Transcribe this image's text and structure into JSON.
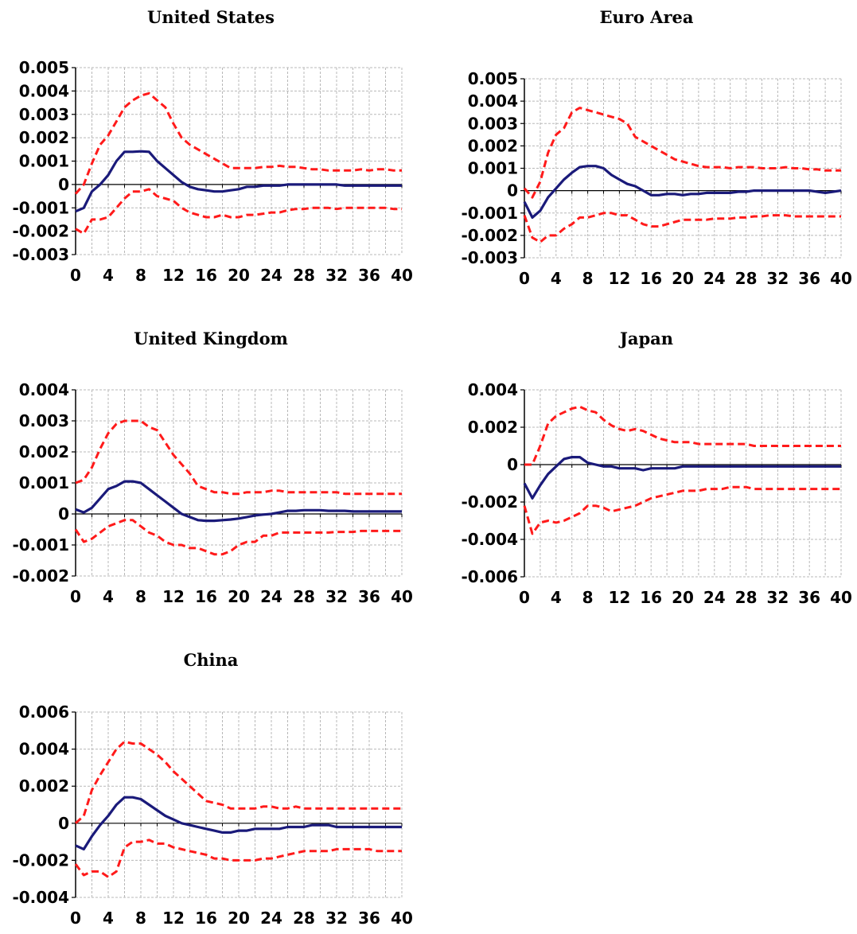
{
  "chart_data": [
    {
      "type": "line",
      "title": "United States",
      "x": [
        0,
        1,
        2,
        3,
        4,
        5,
        6,
        7,
        8,
        9,
        10,
        11,
        12,
        13,
        14,
        15,
        16,
        17,
        18,
        19,
        20,
        21,
        22,
        23,
        24,
        25,
        26,
        27,
        28,
        29,
        30,
        31,
        32,
        33,
        34,
        35,
        36,
        37,
        38,
        39,
        40
      ],
      "series": [
        {
          "role": "estimate",
          "values": [
            -0.00115,
            -0.001,
            -0.0003,
            0.0,
            0.0004,
            0.001,
            0.0014,
            0.0014,
            0.00142,
            0.0014,
            0.001,
            0.0007,
            0.0004,
            0.0001,
            -0.0001,
            -0.0002,
            -0.00025,
            -0.0003,
            -0.0003,
            -0.00025,
            -0.0002,
            -0.0001,
            -0.0001,
            -5e-05,
            -5e-05,
            -5e-05,
            0.0,
            0.0,
            0.0,
            0.0,
            0.0,
            0.0,
            0.0,
            -5e-05,
            -5e-05,
            -5e-05,
            -5e-05,
            -5e-05,
            -5e-05,
            -5e-05,
            -5e-05
          ]
        },
        {
          "role": "upper",
          "values": [
            -0.0004,
            0.0,
            0.0009,
            0.0017,
            0.0021,
            0.0027,
            0.0033,
            0.0036,
            0.0038,
            0.0039,
            0.0036,
            0.0033,
            0.0026,
            0.002,
            0.0017,
            0.0015,
            0.0013,
            0.0011,
            0.0009,
            0.0007,
            0.0007,
            0.0007,
            0.0007,
            0.00075,
            0.00075,
            0.0008,
            0.00075,
            0.00075,
            0.0007,
            0.00065,
            0.00065,
            0.0006,
            0.0006,
            0.0006,
            0.0006,
            0.00065,
            0.0006,
            0.00065,
            0.00065,
            0.0006,
            0.0006
          ]
        },
        {
          "role": "lower",
          "values": [
            -0.0019,
            -0.0021,
            -0.0015,
            -0.0015,
            -0.0014,
            -0.001,
            -0.0006,
            -0.0003,
            -0.0003,
            -0.0002,
            -0.0005,
            -0.0006,
            -0.0007,
            -0.001,
            -0.0012,
            -0.0013,
            -0.0014,
            -0.0014,
            -0.0013,
            -0.0014,
            -0.0014,
            -0.0013,
            -0.0013,
            -0.00125,
            -0.0012,
            -0.0012,
            -0.0011,
            -0.00105,
            -0.00105,
            -0.001,
            -0.001,
            -0.001,
            -0.00105,
            -0.001,
            -0.001,
            -0.001,
            -0.001,
            -0.001,
            -0.001,
            -0.00105,
            -0.00105
          ]
        }
      ],
      "yticks": [
        "0.005",
        "0.004",
        "0.003",
        "0.002",
        "0.001",
        "0",
        "-0.001",
        "-0.002",
        "-0.003"
      ],
      "ylim": [
        -0.003,
        0.005
      ],
      "xticks": [
        "0",
        "4",
        "8",
        "12",
        "16",
        "20",
        "24",
        "28",
        "32",
        "36",
        "40"
      ],
      "xlim": [
        0,
        40
      ],
      "grid": true
    },
    {
      "type": "line",
      "title": "Euro Area",
      "x": [
        0,
        1,
        2,
        3,
        4,
        5,
        6,
        7,
        8,
        9,
        10,
        11,
        12,
        13,
        14,
        15,
        16,
        17,
        18,
        19,
        20,
        21,
        22,
        23,
        24,
        25,
        26,
        27,
        28,
        29,
        30,
        31,
        32,
        33,
        34,
        35,
        36,
        37,
        38,
        39,
        40
      ],
      "series": [
        {
          "role": "estimate",
          "values": [
            -0.0005,
            -0.0012,
            -0.0009,
            -0.0003,
            0.0001,
            0.0005,
            0.0008,
            0.00105,
            0.0011,
            0.0011,
            0.001,
            0.0007,
            0.0005,
            0.0003,
            0.0002,
            0.0,
            -0.0002,
            -0.0002,
            -0.00015,
            -0.00015,
            -0.0002,
            -0.00015,
            -0.00015,
            -0.0001,
            -0.0001,
            -0.0001,
            -0.0001,
            -5e-05,
            -5e-05,
            0.0,
            0.0,
            0.0,
            0.0,
            0.0,
            0.0,
            0.0,
            0.0,
            -5e-05,
            -0.0001,
            -5e-05,
            0.0
          ]
        },
        {
          "role": "upper",
          "values": [
            0.0001,
            -0.0003,
            0.0004,
            0.0017,
            0.0025,
            0.0028,
            0.0035,
            0.0037,
            0.0036,
            0.0035,
            0.0034,
            0.0033,
            0.0032,
            0.003,
            0.0024,
            0.0022,
            0.002,
            0.0018,
            0.0016,
            0.0014,
            0.0013,
            0.0012,
            0.0011,
            0.00105,
            0.00105,
            0.00105,
            0.001,
            0.00105,
            0.00105,
            0.00105,
            0.001,
            0.001,
            0.001,
            0.00105,
            0.001,
            0.001,
            0.00095,
            0.00095,
            0.0009,
            0.0009,
            0.0009
          ]
        },
        {
          "role": "lower",
          "values": [
            -0.0011,
            -0.0021,
            -0.0023,
            -0.002,
            -0.002,
            -0.0017,
            -0.0015,
            -0.0012,
            -0.0012,
            -0.0011,
            -0.001,
            -0.001,
            -0.0011,
            -0.0011,
            -0.0013,
            -0.0015,
            -0.0016,
            -0.0016,
            -0.0015,
            -0.0014,
            -0.0013,
            -0.0013,
            -0.0013,
            -0.0013,
            -0.00125,
            -0.00125,
            -0.00125,
            -0.0012,
            -0.0012,
            -0.00115,
            -0.00115,
            -0.0011,
            -0.0011,
            -0.0011,
            -0.00115,
            -0.00115,
            -0.00115,
            -0.00115,
            -0.00115,
            -0.00115,
            -0.00115
          ]
        }
      ],
      "yticks": [
        "0.005",
        "0.004",
        "0.003",
        "0.002",
        "0.001",
        "0",
        "-0.001",
        "-0.002",
        "-0.003"
      ],
      "ylim": [
        -0.003,
        0.005
      ],
      "xticks": [
        "0",
        "4",
        "8",
        "12",
        "16",
        "20",
        "24",
        "28",
        "32",
        "36",
        "40"
      ],
      "xlim": [
        0,
        40
      ],
      "grid": true
    },
    {
      "type": "line",
      "title": "United Kingdom",
      "x": [
        0,
        1,
        2,
        3,
        4,
        5,
        6,
        7,
        8,
        9,
        10,
        11,
        12,
        13,
        14,
        15,
        16,
        17,
        18,
        19,
        20,
        21,
        22,
        23,
        24,
        25,
        26,
        27,
        28,
        29,
        30,
        31,
        32,
        33,
        34,
        35,
        36,
        37,
        38,
        39,
        40
      ],
      "series": [
        {
          "role": "estimate",
          "values": [
            0.00015,
            5e-05,
            0.0002,
            0.0005,
            0.0008,
            0.0009,
            0.00105,
            0.00105,
            0.001,
            0.0008,
            0.0006,
            0.0004,
            0.0002,
            0.0,
            -0.0001,
            -0.0002,
            -0.00022,
            -0.00022,
            -0.0002,
            -0.00018,
            -0.00015,
            -0.0001,
            -5e-05,
            -2e-05,
            0.0,
            5e-05,
            0.0001,
            0.0001,
            0.00012,
            0.00012,
            0.00012,
            0.0001,
            0.0001,
            0.0001,
            8e-05,
            8e-05,
            8e-05,
            8e-05,
            8e-05,
            8e-05,
            8e-05
          ]
        },
        {
          "role": "upper",
          "values": [
            0.001,
            0.0011,
            0.0015,
            0.0021,
            0.0026,
            0.0029,
            0.003,
            0.003,
            0.003,
            0.0028,
            0.0027,
            0.0023,
            0.0019,
            0.0016,
            0.0013,
            0.0009,
            0.0008,
            0.0007,
            0.0007,
            0.00065,
            0.00065,
            0.0007,
            0.0007,
            0.0007,
            0.00075,
            0.00075,
            0.0007,
            0.0007,
            0.0007,
            0.0007,
            0.0007,
            0.0007,
            0.0007,
            0.00065,
            0.00065,
            0.00065,
            0.00065,
            0.00065,
            0.00065,
            0.00065,
            0.00065
          ]
        },
        {
          "role": "lower",
          "values": [
            -0.0005,
            -0.0009,
            -0.0008,
            -0.0006,
            -0.0004,
            -0.0003,
            -0.0002,
            -0.0002,
            -0.0004,
            -0.0006,
            -0.0007,
            -0.0009,
            -0.001,
            -0.001,
            -0.0011,
            -0.0011,
            -0.0012,
            -0.0013,
            -0.0013,
            -0.0012,
            -0.001,
            -0.0009,
            -0.0009,
            -0.0007,
            -0.0007,
            -0.0006,
            -0.0006,
            -0.0006,
            -0.0006,
            -0.0006,
            -0.0006,
            -0.0006,
            -0.00058,
            -0.00058,
            -0.00058,
            -0.00055,
            -0.00055,
            -0.00055,
            -0.00055,
            -0.00055,
            -0.00055
          ]
        }
      ],
      "yticks": [
        "0.004",
        "0.003",
        "0.002",
        "0.001",
        "0",
        "-0.001",
        "-0.002"
      ],
      "ylim": [
        -0.002,
        0.004
      ],
      "xticks": [
        "0",
        "4",
        "8",
        "12",
        "16",
        "20",
        "24",
        "28",
        "32",
        "36",
        "40"
      ],
      "xlim": [
        0,
        40
      ],
      "grid": true
    },
    {
      "type": "line",
      "title": "Japan",
      "x": [
        0,
        1,
        2,
        3,
        4,
        5,
        6,
        7,
        8,
        9,
        10,
        11,
        12,
        13,
        14,
        15,
        16,
        17,
        18,
        19,
        20,
        21,
        22,
        23,
        24,
        25,
        26,
        27,
        28,
        29,
        30,
        31,
        32,
        33,
        34,
        35,
        36,
        37,
        38,
        39,
        40
      ],
      "series": [
        {
          "role": "estimate",
          "values": [
            -0.001,
            -0.0018,
            -0.0011,
            -0.0005,
            -0.0001,
            0.0003,
            0.0004,
            0.0004,
            0.0001,
            0.0,
            -0.0001,
            -0.0001,
            -0.0002,
            -0.0002,
            -0.0002,
            -0.0003,
            -0.0002,
            -0.0002,
            -0.0002,
            -0.0002,
            -0.0001,
            -0.0001,
            -0.0001,
            -0.0001,
            -0.0001,
            -0.0001,
            -0.0001,
            -0.0001,
            -0.0001,
            -0.0001,
            -0.0001,
            -0.0001,
            -0.0001,
            -0.0001,
            -0.0001,
            -0.0001,
            -0.0001,
            -0.0001,
            -0.0001,
            -0.0001,
            -0.0001
          ]
        },
        {
          "role": "upper",
          "values": [
            0.0,
            0.0,
            0.001,
            0.0022,
            0.0026,
            0.0028,
            0.003,
            0.0031,
            0.0029,
            0.0028,
            0.0024,
            0.0021,
            0.0019,
            0.0018,
            0.0019,
            0.0018,
            0.0016,
            0.0014,
            0.0013,
            0.0012,
            0.0012,
            0.0012,
            0.0011,
            0.0011,
            0.0011,
            0.0011,
            0.0011,
            0.0011,
            0.0011,
            0.001,
            0.001,
            0.001,
            0.001,
            0.001,
            0.001,
            0.001,
            0.001,
            0.001,
            0.001,
            0.001,
            0.001
          ]
        },
        {
          "role": "lower",
          "values": [
            -0.0022,
            -0.0037,
            -0.0031,
            -0.003,
            -0.0031,
            -0.003,
            -0.0028,
            -0.0026,
            -0.0022,
            -0.0022,
            -0.0023,
            -0.0025,
            -0.0024,
            -0.0023,
            -0.0022,
            -0.002,
            -0.0018,
            -0.0017,
            -0.0016,
            -0.0015,
            -0.0014,
            -0.0014,
            -0.0014,
            -0.0013,
            -0.0013,
            -0.0013,
            -0.0012,
            -0.0012,
            -0.0012,
            -0.0013,
            -0.0013,
            -0.0013,
            -0.0013,
            -0.0013,
            -0.0013,
            -0.0013,
            -0.0013,
            -0.0013,
            -0.0013,
            -0.0013,
            -0.0013
          ]
        }
      ],
      "yticks": [
        "0.004",
        "0.002",
        "0",
        "-0.002",
        "-0.004",
        "-0.006"
      ],
      "ylim": [
        -0.006,
        0.004
      ],
      "xticks": [
        "0",
        "4",
        "8",
        "12",
        "16",
        "20",
        "24",
        "28",
        "32",
        "36",
        "40"
      ],
      "xlim": [
        0,
        40
      ],
      "grid": true
    },
    {
      "type": "line",
      "title": "China",
      "x": [
        0,
        1,
        2,
        3,
        4,
        5,
        6,
        7,
        8,
        9,
        10,
        11,
        12,
        13,
        14,
        15,
        16,
        17,
        18,
        19,
        20,
        21,
        22,
        23,
        24,
        25,
        26,
        27,
        28,
        29,
        30,
        31,
        32,
        33,
        34,
        35,
        36,
        37,
        38,
        39,
        40
      ],
      "series": [
        {
          "role": "estimate",
          "values": [
            -0.0012,
            -0.0014,
            -0.0007,
            -0.0001,
            0.0004,
            0.001,
            0.0014,
            0.0014,
            0.0013,
            0.001,
            0.0007,
            0.0004,
            0.0002,
            0.0,
            -0.0001,
            -0.0002,
            -0.0003,
            -0.0004,
            -0.0005,
            -0.0005,
            -0.0004,
            -0.0004,
            -0.0003,
            -0.0003,
            -0.0003,
            -0.0003,
            -0.0002,
            -0.0002,
            -0.0002,
            -0.0001,
            -0.0001,
            -0.0001,
            -0.0002,
            -0.0002,
            -0.0002,
            -0.0002,
            -0.0002,
            -0.0002,
            -0.0002,
            -0.0002,
            -0.0002
          ]
        },
        {
          "role": "upper",
          "values": [
            0.0,
            0.0004,
            0.0018,
            0.0026,
            0.0033,
            0.004,
            0.0044,
            0.0043,
            0.0043,
            0.004,
            0.0037,
            0.0033,
            0.0028,
            0.0024,
            0.002,
            0.0016,
            0.0012,
            0.0011,
            0.001,
            0.0008,
            0.0008,
            0.0008,
            0.0008,
            0.0009,
            0.0009,
            0.0008,
            0.0008,
            0.0009,
            0.0008,
            0.0008,
            0.0008,
            0.0008,
            0.0008,
            0.0008,
            0.0008,
            0.0008,
            0.0008,
            0.0008,
            0.0008,
            0.0008,
            0.0008
          ]
        },
        {
          "role": "lower",
          "values": [
            -0.0022,
            -0.0028,
            -0.0026,
            -0.0026,
            -0.0029,
            -0.0026,
            -0.0013,
            -0.001,
            -0.001,
            -0.0009,
            -0.0011,
            -0.0011,
            -0.0013,
            -0.0014,
            -0.0015,
            -0.0016,
            -0.0017,
            -0.0019,
            -0.0019,
            -0.002,
            -0.002,
            -0.002,
            -0.002,
            -0.0019,
            -0.0019,
            -0.0018,
            -0.0017,
            -0.0016,
            -0.0015,
            -0.0015,
            -0.0015,
            -0.0015,
            -0.0014,
            -0.0014,
            -0.0014,
            -0.0014,
            -0.0014,
            -0.0015,
            -0.0015,
            -0.0015,
            -0.0015
          ]
        }
      ],
      "yticks": [
        "0.006",
        "0.004",
        "0.002",
        "0",
        "-0.002",
        "-0.004"
      ],
      "ylim": [
        -0.004,
        0.006
      ],
      "xticks": [
        "0",
        "4",
        "8",
        "12",
        "16",
        "20",
        "24",
        "28",
        "32",
        "36",
        "40"
      ],
      "xlim": [
        0,
        40
      ],
      "grid": true
    }
  ],
  "colors": {
    "estimate": "#1a1a7a",
    "band": "#ff1a1a",
    "grid": "#b8b8b8",
    "axis": "#000000"
  }
}
